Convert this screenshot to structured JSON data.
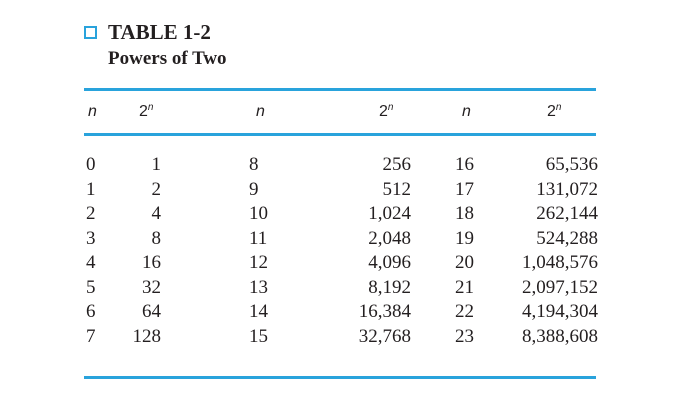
{
  "table": {
    "title": "TABLE 1-2",
    "subtitle": "Powers of Two",
    "headers": [
      {
        "base": "n",
        "sup": ""
      },
      {
        "base": "2",
        "sup": "n"
      },
      {
        "base": "n",
        "sup": ""
      },
      {
        "base": "2",
        "sup": "n"
      },
      {
        "base": "n",
        "sup": ""
      },
      {
        "base": "2",
        "sup": "n"
      }
    ],
    "rows": [
      [
        "0",
        "1",
        "8",
        "256",
        "16",
        "65,536"
      ],
      [
        "1",
        "2",
        "9",
        "512",
        "17",
        "131,072"
      ],
      [
        "2",
        "4",
        "10",
        "1,024",
        "18",
        "262,144"
      ],
      [
        "3",
        "8",
        "11",
        "2,048",
        "19",
        "524,288"
      ],
      [
        "4",
        "16",
        "12",
        "4,096",
        "20",
        "1,048,576"
      ],
      [
        "5",
        "32",
        "13",
        "8,192",
        "21",
        "2,097,152"
      ],
      [
        "6",
        "64",
        "14",
        "16,384",
        "22",
        "4,194,304"
      ],
      [
        "7",
        "128",
        "15",
        "32,768",
        "23",
        "8,388,608"
      ]
    ]
  },
  "colors": {
    "accent": "#29a3dc",
    "text": "#231f20"
  }
}
